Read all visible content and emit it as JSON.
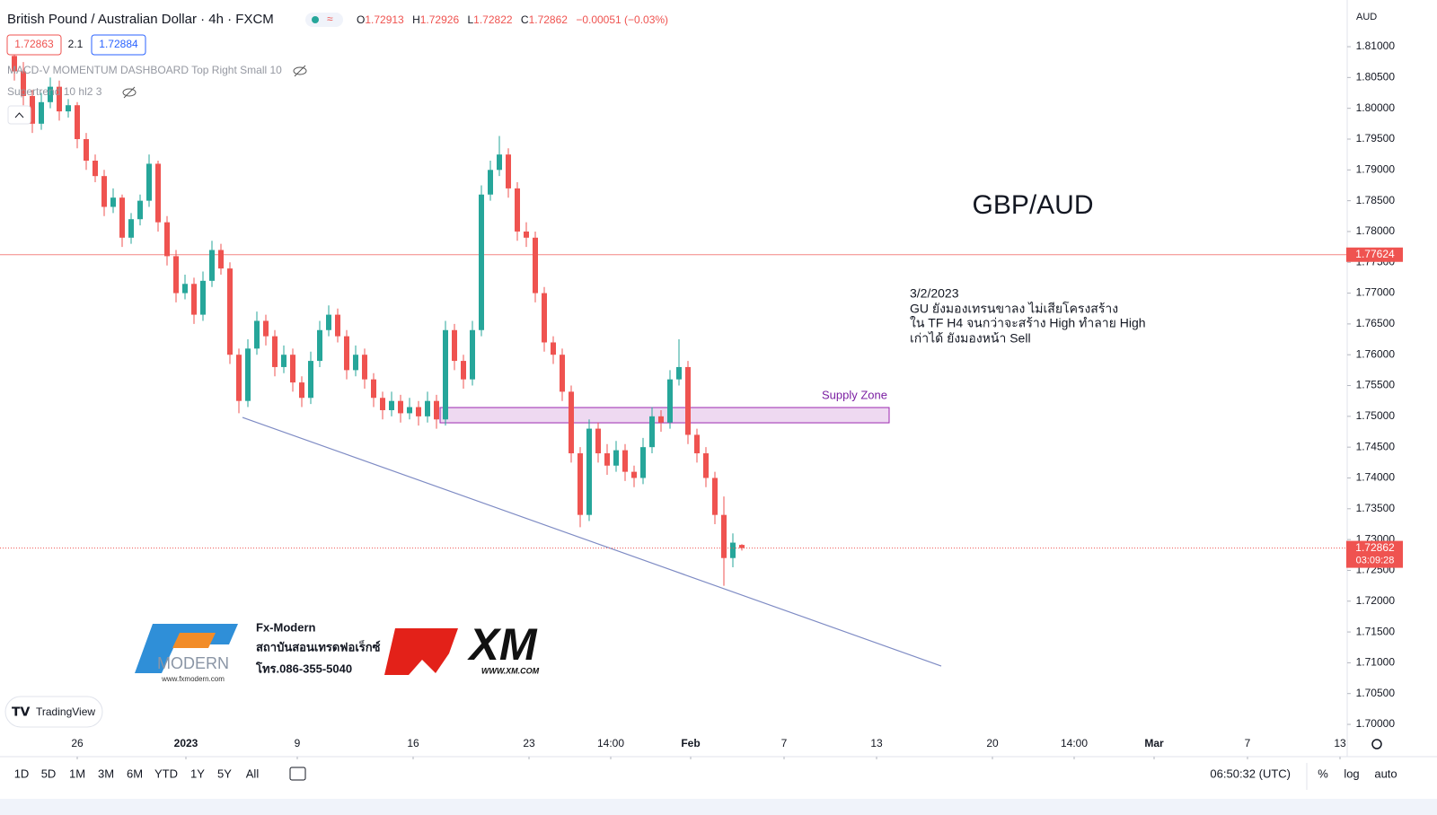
{
  "chart_data": {
    "type": "candlestick",
    "title": "British Pound / Australian Dollar · 4h · FXCM",
    "ohlc_labels": [
      "O",
      "H",
      "L",
      "C"
    ],
    "change": "−0.00051 (−0.03%)",
    "quote": {
      "bid": "1.72863",
      "spread": "2.1",
      "ask": "1.72884"
    },
    "indicators": [
      "MACD-V MOMENTUM DASHBOARD Top Right Small 10",
      "Supertrend 10 hl2 3"
    ],
    "currency": "AUD",
    "up_color": "#26a69a",
    "down_color": "#ef5350",
    "candles": [
      [
        1.8085,
        1.81,
        1.8045,
        1.806
      ],
      [
        1.806,
        1.8075,
        1.8005,
        1.802
      ],
      [
        1.802,
        1.803,
        1.796,
        1.7975
      ],
      [
        1.7975,
        1.8025,
        1.7965,
        1.801
      ],
      [
        1.801,
        1.805,
        1.8,
        1.8035
      ],
      [
        1.8035,
        1.8045,
        1.798,
        1.7995
      ],
      [
        1.7995,
        1.8015,
        1.7985,
        1.8005
      ],
      [
        1.8005,
        1.801,
        1.7935,
        1.795
      ],
      [
        1.795,
        1.796,
        1.79,
        1.7915
      ],
      [
        1.7915,
        1.7925,
        1.788,
        1.789
      ],
      [
        1.789,
        1.79,
        1.7825,
        1.784
      ],
      [
        1.784,
        1.787,
        1.783,
        1.7855
      ],
      [
        1.7855,
        1.786,
        1.7775,
        1.779
      ],
      [
        1.779,
        1.783,
        1.778,
        1.782
      ],
      [
        1.782,
        1.786,
        1.781,
        1.785
      ],
      [
        1.785,
        1.7925,
        1.784,
        1.791
      ],
      [
        1.791,
        1.7915,
        1.78,
        1.7815
      ],
      [
        1.7815,
        1.7825,
        1.7745,
        1.776
      ],
      [
        1.776,
        1.777,
        1.7685,
        1.77
      ],
      [
        1.77,
        1.773,
        1.769,
        1.7715
      ],
      [
        1.7715,
        1.7725,
        1.765,
        1.7665
      ],
      [
        1.7665,
        1.7735,
        1.7655,
        1.772
      ],
      [
        1.772,
        1.7785,
        1.771,
        1.777
      ],
      [
        1.777,
        1.778,
        1.773,
        1.774
      ],
      [
        1.774,
        1.775,
        1.7585,
        1.76
      ],
      [
        1.76,
        1.761,
        1.7505,
        1.7525
      ],
      [
        1.7525,
        1.7625,
        1.7515,
        1.761
      ],
      [
        1.761,
        1.767,
        1.76,
        1.7655
      ],
      [
        1.7655,
        1.7665,
        1.7615,
        1.763
      ],
      [
        1.763,
        1.764,
        1.7565,
        1.758
      ],
      [
        1.758,
        1.7615,
        1.757,
        1.76
      ],
      [
        1.76,
        1.761,
        1.754,
        1.7555
      ],
      [
        1.7555,
        1.7565,
        1.7515,
        1.753
      ],
      [
        1.753,
        1.7605,
        1.752,
        1.759
      ],
      [
        1.759,
        1.7655,
        1.758,
        1.764
      ],
      [
        1.764,
        1.768,
        1.763,
        1.7665
      ],
      [
        1.7665,
        1.7675,
        1.762,
        1.763
      ],
      [
        1.763,
        1.764,
        1.756,
        1.7575
      ],
      [
        1.7575,
        1.7615,
        1.7565,
        1.76
      ],
      [
        1.76,
        1.761,
        1.7545,
        1.756
      ],
      [
        1.756,
        1.757,
        1.7515,
        1.753
      ],
      [
        1.753,
        1.754,
        1.7495,
        1.751
      ],
      [
        1.751,
        1.754,
        1.75,
        1.7525
      ],
      [
        1.7525,
        1.7535,
        1.749,
        1.7505
      ],
      [
        1.7505,
        1.753,
        1.7495,
        1.7515
      ],
      [
        1.7515,
        1.7525,
        1.7485,
        1.75
      ],
      [
        1.75,
        1.754,
        1.749,
        1.7525
      ],
      [
        1.7525,
        1.7535,
        1.748,
        1.7495
      ],
      [
        1.7495,
        1.7655,
        1.7485,
        1.764
      ],
      [
        1.764,
        1.765,
        1.7575,
        1.759
      ],
      [
        1.759,
        1.76,
        1.7545,
        1.756
      ],
      [
        1.756,
        1.7655,
        1.755,
        1.764
      ],
      [
        1.764,
        1.7875,
        1.763,
        1.786
      ],
      [
        1.786,
        1.7915,
        1.785,
        1.79
      ],
      [
        1.79,
        1.7955,
        1.789,
        1.7925
      ],
      [
        1.7925,
        1.7935,
        1.7855,
        1.787
      ],
      [
        1.787,
        1.788,
        1.7785,
        1.78
      ],
      [
        1.78,
        1.7815,
        1.7775,
        1.779
      ],
      [
        1.779,
        1.78,
        1.7685,
        1.77
      ],
      [
        1.77,
        1.771,
        1.7605,
        1.762
      ],
      [
        1.762,
        1.763,
        1.7585,
        1.76
      ],
      [
        1.76,
        1.761,
        1.7525,
        1.754
      ],
      [
        1.754,
        1.755,
        1.7425,
        1.744
      ],
      [
        1.744,
        1.745,
        1.732,
        1.734
      ],
      [
        1.734,
        1.7495,
        1.733,
        1.748
      ],
      [
        1.748,
        1.749,
        1.7425,
        1.744
      ],
      [
        1.744,
        1.7455,
        1.7405,
        1.742
      ],
      [
        1.742,
        1.746,
        1.741,
        1.7445
      ],
      [
        1.7445,
        1.7455,
        1.7395,
        1.741
      ],
      [
        1.741,
        1.742,
        1.7385,
        1.74
      ],
      [
        1.74,
        1.7465,
        1.739,
        1.745
      ],
      [
        1.745,
        1.7515,
        1.744,
        1.75
      ],
      [
        1.75,
        1.751,
        1.7475,
        1.749
      ],
      [
        1.749,
        1.7575,
        1.748,
        1.756
      ],
      [
        1.756,
        1.7625,
        1.755,
        1.758
      ],
      [
        1.758,
        1.759,
        1.7455,
        1.747
      ],
      [
        1.747,
        1.748,
        1.7425,
        1.744
      ],
      [
        1.744,
        1.745,
        1.7385,
        1.74
      ],
      [
        1.74,
        1.741,
        1.7325,
        1.734
      ],
      [
        1.734,
        1.737,
        1.7225,
        1.727
      ],
      [
        1.727,
        1.731,
        1.7255,
        1.7295
      ],
      [
        1.72913,
        1.72926,
        1.72822,
        1.72862
      ]
    ],
    "xlim": [
      -1.6,
      148.4
    ],
    "xticks": [
      {
        "value": 7,
        "label": "26"
      },
      {
        "value": 19.1,
        "label": "2023"
      },
      {
        "value": 31.5,
        "label": "9"
      },
      {
        "value": 44.4,
        "label": "16"
      },
      {
        "value": 57.3,
        "label": "23"
      },
      {
        "value": 66.4,
        "label": "14:00"
      },
      {
        "value": 75.3,
        "label": "Feb"
      },
      {
        "value": 85.7,
        "label": "7"
      },
      {
        "value": 96,
        "label": "13"
      },
      {
        "value": 108.9,
        "label": "20"
      },
      {
        "value": 118,
        "label": "14:00"
      },
      {
        "value": 126.9,
        "label": "Mar"
      },
      {
        "value": 137.3,
        "label": "7"
      },
      {
        "value": 147.6,
        "label": "13"
      }
    ],
    "ylim": [
      1.69476,
      1.81758
    ],
    "yticks": [
      {
        "value": 1.7,
        "label": "1.70000"
      },
      {
        "value": 1.705,
        "label": "1.70500"
      },
      {
        "value": 1.71,
        "label": "1.71000"
      },
      {
        "value": 1.715,
        "label": "1.71500"
      },
      {
        "value": 1.72,
        "label": "1.72000"
      },
      {
        "value": 1.725,
        "label": "1.72500"
      },
      {
        "value": 1.73,
        "label": "1.73000"
      },
      {
        "value": 1.735,
        "label": "1.73500"
      },
      {
        "value": 1.74,
        "label": "1.74000"
      },
      {
        "value": 1.745,
        "label": "1.74500"
      },
      {
        "value": 1.75,
        "label": "1.75000"
      },
      {
        "value": 1.755,
        "label": "1.75500"
      },
      {
        "value": 1.76,
        "label": "1.76000"
      },
      {
        "value": 1.765,
        "label": "1.76500"
      },
      {
        "value": 1.77,
        "label": "1.77000"
      },
      {
        "value": 1.775,
        "label": "1.77500"
      },
      {
        "value": 1.78,
        "label": "1.78000"
      },
      {
        "value": 1.785,
        "label": "1.78500"
      },
      {
        "value": 1.79,
        "label": "1.79000"
      },
      {
        "value": 1.795,
        "label": "1.79500"
      },
      {
        "value": 1.8,
        "label": "1.80000"
      },
      {
        "value": 1.805,
        "label": "1.80500"
      },
      {
        "value": 1.81,
        "label": "1.81000"
      }
    ],
    "grid": false,
    "hline": {
      "value": 1.77624,
      "color": "#ef5350"
    },
    "countdown": "03:09:28",
    "supply_zone": {
      "label": "Supply Zone",
      "x": [
        47.4,
        97.4
      ],
      "y": [
        1.74895,
        1.75143
      ]
    },
    "trendline": {
      "x": [
        25.4,
        103.2
      ],
      "y": [
        1.74983,
        1.70947
      ]
    },
    "symbol_label": "GBP/AUD",
    "note": [
      "3/2/2023",
      "GU ยังมองเทรนขาลง ไม่เสียโครงสร้าง",
      "ใน TF H4 จนกว่าจะสร้าง High ทำลาย High",
      "เก่าได้ ยังมองหน้า Sell"
    ],
    "logos": {
      "fx": "FX",
      "modern": "MODERN",
      "fx_site": "www.fxmodern.com",
      "fx_name": "Fx-Modern",
      "fx_desc": "สถาบันสอนเทรดฟอเร็กซ์",
      "fx_phone": "โทร.086-355-5040",
      "xm": "XM",
      "xm_site": "WWW.XM.COM",
      "tv": "TradingView"
    },
    "ranges": [
      "1D",
      "5D",
      "1M",
      "3M",
      "6M",
      "YTD",
      "1Y",
      "5Y",
      "All"
    ],
    "clock": "06:50:32 (UTC)",
    "scale_options": [
      "%",
      "log",
      "auto"
    ]
  }
}
